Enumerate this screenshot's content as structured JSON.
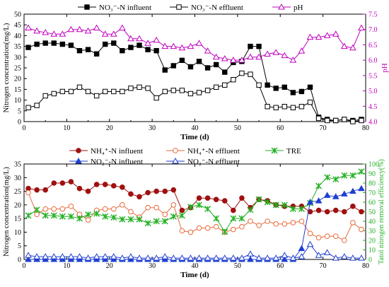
{
  "colors": {
    "black": "#000000",
    "pink": "#c000c0",
    "red": "#a01010",
    "orange": "#e86a3a",
    "green": "#22b022",
    "blue": "#1f3fd0"
  },
  "chart_data": [
    {
      "type": "line",
      "xlabel": "Time (d)",
      "ylabel": "Nitrogen concentration(mg/L)",
      "y2label": "pH",
      "xlim": [
        0,
        80
      ],
      "ylim": [
        0,
        50
      ],
      "y2lim": [
        4.0,
        7.5
      ],
      "xticks": [
        "0",
        "10",
        "20",
        "30",
        "40",
        "50",
        "60",
        "70",
        "80"
      ],
      "yticks": [
        "0",
        "5",
        "10",
        "15",
        "20",
        "25",
        "30",
        "35",
        "40",
        "45",
        "50"
      ],
      "y2ticks": [
        "4.0",
        "4.5",
        "5.0",
        "5.5",
        "6.0",
        "6.5",
        "7.0",
        "7.5"
      ],
      "legend_placement": "top",
      "series": [
        {
          "name": "NO₃⁻-N influent",
          "axis": "left",
          "marker": "square-filled",
          "x": [
            1,
            3,
            5,
            7,
            9,
            11,
            13,
            15,
            17,
            19,
            21,
            23,
            25,
            27,
            29,
            31,
            33,
            35,
            37,
            39,
            41,
            43,
            45,
            47,
            49,
            51,
            53,
            55,
            57,
            59,
            61,
            63,
            65,
            67,
            69,
            71,
            73,
            75,
            77,
            79
          ],
          "y": [
            34.5,
            36,
            36.5,
            36.5,
            36,
            35.5,
            33,
            33.5,
            31.5,
            36,
            36.5,
            33,
            34.5,
            35.5,
            33.5,
            33,
            24,
            26,
            28.5,
            25.5,
            28,
            25,
            26.5,
            23,
            27.5,
            28,
            35,
            35,
            17,
            15.5,
            16,
            13.5,
            14,
            16,
            2,
            1,
            0.5,
            1,
            0.5,
            1
          ]
        },
        {
          "name": "NO₃⁻-N effluent",
          "axis": "left",
          "marker": "square-open",
          "x": [
            1,
            3,
            5,
            7,
            9,
            11,
            13,
            15,
            17,
            19,
            21,
            23,
            25,
            27,
            29,
            31,
            33,
            35,
            37,
            39,
            41,
            43,
            45,
            47,
            49,
            51,
            53,
            55,
            57,
            59,
            61,
            63,
            65,
            67,
            69,
            71,
            73,
            75,
            77,
            79
          ],
          "y": [
            6.5,
            7.5,
            12,
            13,
            14,
            14,
            16,
            14,
            12,
            14,
            14,
            14,
            15.5,
            16,
            15.5,
            11,
            14,
            14.5,
            14.5,
            13,
            13.5,
            14.5,
            16,
            17,
            19.5,
            22.5,
            22,
            17,
            7,
            6.5,
            7,
            6.5,
            7,
            9,
            1.5,
            0.5,
            0.5,
            1,
            0,
            0.5
          ]
        },
        {
          "name": "pH",
          "axis": "right",
          "marker": "triangle-open",
          "x": [
            1,
            3,
            5,
            7,
            9,
            11,
            13,
            15,
            17,
            19,
            21,
            23,
            25,
            27,
            29,
            31,
            33,
            35,
            37,
            39,
            41,
            43,
            45,
            47,
            49,
            51,
            53,
            55,
            57,
            59,
            61,
            63,
            65,
            67,
            69,
            71,
            73,
            75,
            77,
            79
          ],
          "y": [
            7.05,
            6.95,
            6.9,
            6.85,
            6.85,
            7.0,
            7.0,
            6.95,
            7.05,
            6.85,
            6.85,
            7.05,
            6.7,
            6.7,
            6.55,
            6.65,
            6.45,
            6.45,
            6.4,
            6.45,
            6.55,
            6.3,
            6.1,
            6.05,
            6.0,
            6.0,
            6.1,
            6.1,
            6.2,
            6.25,
            6.15,
            6.0,
            6.3,
            6.75,
            6.75,
            6.8,
            6.85,
            6.45,
            6.4,
            7.05
          ]
        }
      ]
    },
    {
      "type": "line",
      "xlabel": "Time (d)",
      "ylabel": "Nitrogen concentration(mg/L)",
      "y2label": "Tatol nitrogen removal efficiency(%)",
      "xlim": [
        0,
        80
      ],
      "ylim": [
        0,
        35
      ],
      "y2lim": [
        0,
        100
      ],
      "xticks": [
        "0",
        "10",
        "20",
        "30",
        "40",
        "50",
        "60",
        "70",
        "80"
      ],
      "yticks": [
        "0",
        "5",
        "10",
        "15",
        "20",
        "25",
        "30",
        "35"
      ],
      "y2ticks": [
        "0",
        "10",
        "20",
        "30",
        "40",
        "50",
        "60",
        "70",
        "80",
        "90",
        "100"
      ],
      "legend_placement": "top",
      "series": [
        {
          "name": "NH₄⁺-N influent",
          "axis": "left",
          "marker": "circle-filled",
          "x": [
            1,
            3,
            5,
            7,
            9,
            11,
            13,
            15,
            17,
            19,
            21,
            23,
            25,
            27,
            29,
            31,
            33,
            35,
            37,
            39,
            41,
            43,
            45,
            47,
            49,
            51,
            53,
            55,
            57,
            59,
            61,
            63,
            65,
            67,
            69,
            71,
            73,
            75,
            77,
            79
          ],
          "y": [
            26,
            25.5,
            25.5,
            28,
            28,
            28.5,
            26,
            25,
            27.5,
            27.5,
            27,
            26.5,
            24,
            23,
            24.5,
            25,
            25,
            25.5,
            18,
            19,
            22.5,
            22.5,
            22,
            21.5,
            18,
            22.5,
            19,
            22,
            21.5,
            20,
            19.5,
            19.5,
            19.5,
            17.5,
            18,
            17.5,
            18,
            17.5,
            19.5,
            17.5
          ]
        },
        {
          "name": "NH₄⁺-N effluent",
          "axis": "left",
          "marker": "circle-open",
          "x": [
            1,
            3,
            5,
            7,
            9,
            11,
            13,
            15,
            17,
            19,
            21,
            23,
            25,
            27,
            29,
            31,
            33,
            35,
            37,
            39,
            41,
            43,
            45,
            47,
            49,
            51,
            53,
            55,
            57,
            59,
            61,
            63,
            65,
            67,
            69,
            71,
            73,
            75,
            77,
            79
          ],
          "y": [
            24.5,
            16.5,
            18.5,
            18.5,
            18.5,
            19.5,
            16.5,
            14.5,
            18,
            18.5,
            18.5,
            20,
            17.5,
            15.5,
            19,
            19,
            16.5,
            20,
            10.5,
            10,
            11.5,
            11.5,
            12,
            10,
            11,
            12,
            14,
            12.5,
            14,
            13,
            13,
            13.5,
            14,
            9.5,
            8,
            8.5,
            8.5,
            7,
            13.5,
            11
          ]
        },
        {
          "name": "TRE",
          "axis": "right",
          "marker": "star",
          "x": [
            1,
            3,
            5,
            7,
            9,
            11,
            13,
            15,
            17,
            19,
            21,
            23,
            25,
            27,
            29,
            31,
            33,
            35,
            37,
            39,
            41,
            43,
            45,
            47,
            49,
            51,
            53,
            55,
            57,
            59,
            61,
            63,
            65,
            67,
            69,
            71,
            73,
            75,
            77,
            79
          ],
          "y": [
            46,
            52,
            46,
            46,
            45,
            45,
            43,
            47,
            48,
            45,
            44,
            42,
            42,
            42,
            38,
            40,
            40,
            45,
            46,
            55,
            57,
            53,
            43,
            29,
            43,
            43,
            52,
            63,
            60,
            57,
            57,
            53,
            53,
            59,
            77,
            86,
            84,
            88,
            88,
            92
          ]
        },
        {
          "name": "NO₂⁻-N influent",
          "axis": "left",
          "marker": "triangle-filled",
          "x": [
            1,
            3,
            5,
            7,
            9,
            11,
            13,
            15,
            17,
            19,
            21,
            23,
            25,
            27,
            29,
            31,
            33,
            35,
            37,
            39,
            41,
            43,
            45,
            47,
            49,
            51,
            53,
            55,
            57,
            59,
            61,
            63,
            65,
            67,
            69,
            71,
            73,
            75,
            77,
            79
          ],
          "y": [
            0,
            0,
            0,
            0,
            0,
            0,
            0,
            0,
            0,
            0,
            0,
            0,
            0,
            0,
            0,
            0,
            0,
            0,
            0,
            0,
            0,
            0,
            0,
            0,
            0,
            0,
            0,
            0,
            0,
            0,
            0,
            0,
            4,
            21,
            21.5,
            23.5,
            23,
            24,
            25,
            26
          ]
        },
        {
          "name": "NO₂⁻-N effluent",
          "axis": "left",
          "marker": "triangle-open",
          "x": [
            1,
            3,
            5,
            7,
            9,
            11,
            13,
            15,
            17,
            19,
            21,
            23,
            25,
            27,
            29,
            31,
            33,
            35,
            37,
            39,
            41,
            43,
            45,
            47,
            49,
            51,
            53,
            55,
            57,
            59,
            61,
            63,
            65,
            67,
            69,
            71,
            73,
            75,
            77,
            79
          ],
          "y": [
            1.5,
            1,
            1,
            1,
            1,
            1,
            1,
            0.5,
            1,
            1,
            1,
            0.5,
            1,
            0.5,
            0.5,
            0.5,
            1,
            0.5,
            0.5,
            0.5,
            0.5,
            0.5,
            0.5,
            0.5,
            0.5,
            0.5,
            2,
            0.5,
            0.5,
            0.5,
            1.5,
            0.5,
            1,
            5.5,
            1.5,
            2.5,
            0.5,
            1,
            0.5,
            0.5
          ]
        }
      ]
    }
  ]
}
